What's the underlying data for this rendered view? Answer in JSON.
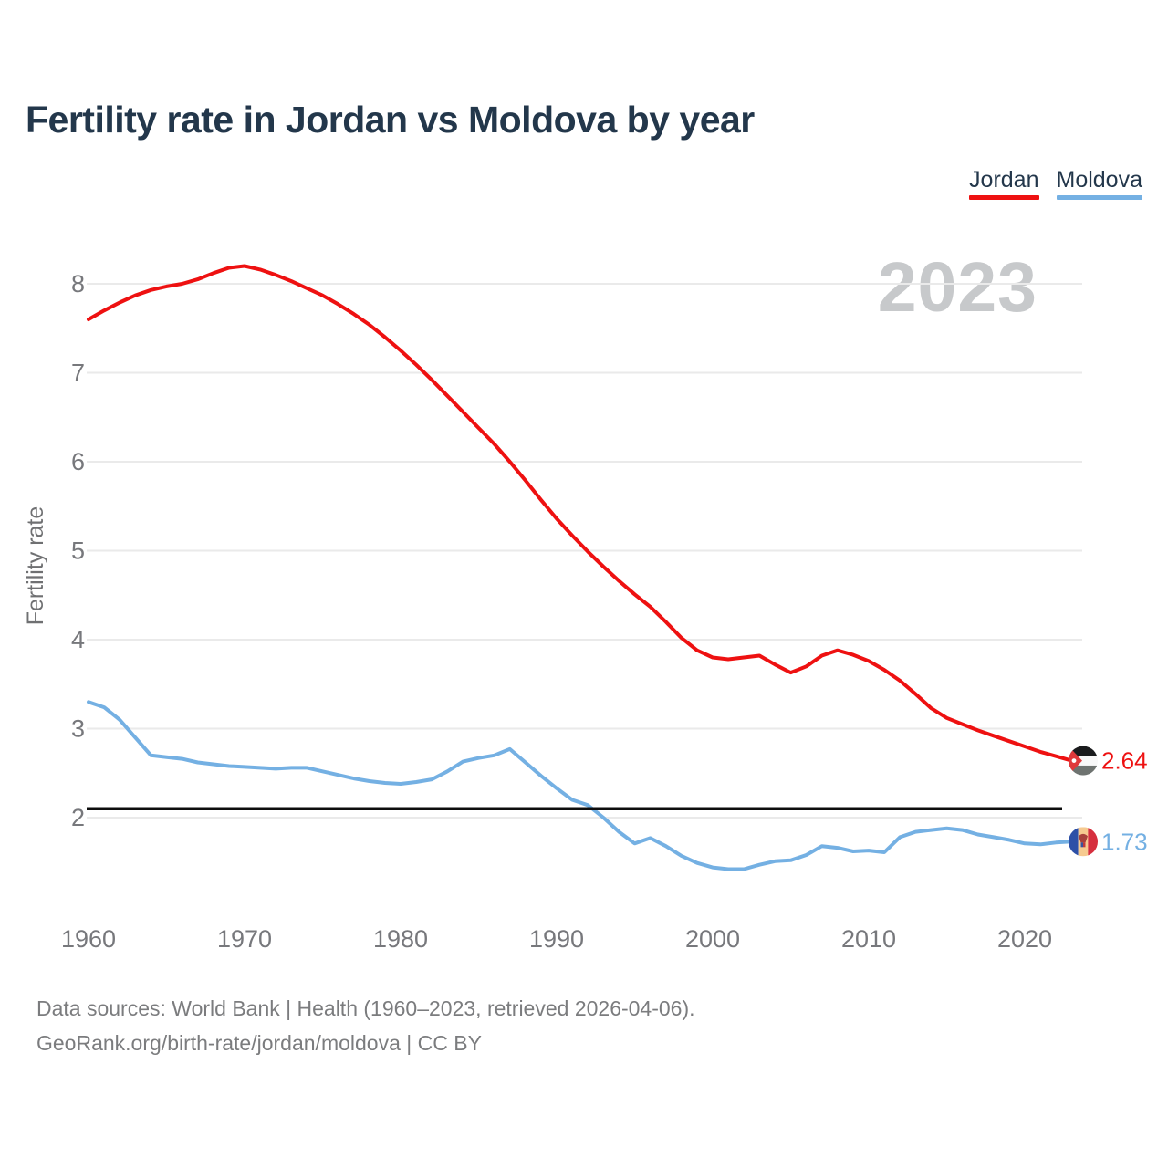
{
  "title": "Fertility rate in Jordan vs Moldova by year",
  "legend": [
    {
      "label": "Jordan",
      "color": "#ee1111"
    },
    {
      "label": "Moldova",
      "color": "#74b0e3"
    }
  ],
  "watermark": "2023",
  "footer": {
    "line1": "Data sources: World Bank | Health (1960–2023, retrieved 2026-04-06).",
    "line2": "GeoRank.org/birth-rate/jordan/moldova | CC BY"
  },
  "chart_data": {
    "type": "line",
    "title": "Fertility rate in Jordan vs Moldova by year",
    "xlabel": "",
    "ylabel": "Fertility rate",
    "ylim": [
      1.3,
      8.5
    ],
    "yticks": [
      8,
      7,
      6,
      5,
      4,
      3,
      2
    ],
    "xticks": [
      1960,
      1970,
      1980,
      1990,
      2000,
      2010,
      2020
    ],
    "grid": "horizontal",
    "legend_position": "top-right",
    "reference_line": {
      "value": 2.1,
      "color": "#0d0d0d"
    },
    "x": [
      1960,
      1961,
      1962,
      1963,
      1964,
      1965,
      1966,
      1967,
      1968,
      1969,
      1970,
      1971,
      1972,
      1973,
      1974,
      1975,
      1976,
      1977,
      1978,
      1979,
      1980,
      1981,
      1982,
      1983,
      1984,
      1985,
      1986,
      1987,
      1988,
      1989,
      1990,
      1991,
      1992,
      1993,
      1994,
      1995,
      1996,
      1997,
      1998,
      1999,
      2000,
      2001,
      2002,
      2003,
      2004,
      2005,
      2006,
      2007,
      2008,
      2009,
      2010,
      2011,
      2012,
      2013,
      2014,
      2015,
      2016,
      2017,
      2018,
      2019,
      2020,
      2021,
      2022,
      2023
    ],
    "series": [
      {
        "name": "Jordan",
        "color": "#ee1111",
        "end_value": 2.64,
        "end_label": "2.64",
        "flag_icon": "jordan-flag-icon",
        "values": [
          7.6,
          7.7,
          7.79,
          7.87,
          7.93,
          7.97,
          8.0,
          8.05,
          8.12,
          8.18,
          8.2,
          8.16,
          8.1,
          8.03,
          7.95,
          7.87,
          7.77,
          7.66,
          7.54,
          7.4,
          7.25,
          7.09,
          6.92,
          6.74,
          6.56,
          6.38,
          6.2,
          6.0,
          5.79,
          5.57,
          5.36,
          5.17,
          4.99,
          4.82,
          4.66,
          4.51,
          4.37,
          4.2,
          4.02,
          3.88,
          3.8,
          3.78,
          3.8,
          3.82,
          3.72,
          3.63,
          3.7,
          3.82,
          3.88,
          3.83,
          3.76,
          3.66,
          3.54,
          3.39,
          3.23,
          3.12,
          3.05,
          2.98,
          2.92,
          2.86,
          2.8,
          2.74,
          2.69,
          2.64
        ]
      },
      {
        "name": "Moldova",
        "color": "#74b0e3",
        "end_value": 1.73,
        "end_label": "1.73",
        "flag_icon": "moldova-flag-icon",
        "values": [
          3.3,
          3.24,
          3.1,
          2.9,
          2.7,
          2.68,
          2.66,
          2.62,
          2.6,
          2.58,
          2.57,
          2.56,
          2.55,
          2.56,
          2.56,
          2.52,
          2.48,
          2.44,
          2.41,
          2.39,
          2.38,
          2.4,
          2.43,
          2.52,
          2.63,
          2.67,
          2.7,
          2.77,
          2.62,
          2.47,
          2.33,
          2.2,
          2.14,
          2.0,
          1.84,
          1.71,
          1.77,
          1.68,
          1.57,
          1.49,
          1.44,
          1.42,
          1.42,
          1.47,
          1.51,
          1.52,
          1.58,
          1.68,
          1.66,
          1.62,
          1.63,
          1.61,
          1.78,
          1.84,
          1.86,
          1.88,
          1.86,
          1.81,
          1.78,
          1.75,
          1.71,
          1.7,
          1.72,
          1.73
        ]
      }
    ]
  }
}
